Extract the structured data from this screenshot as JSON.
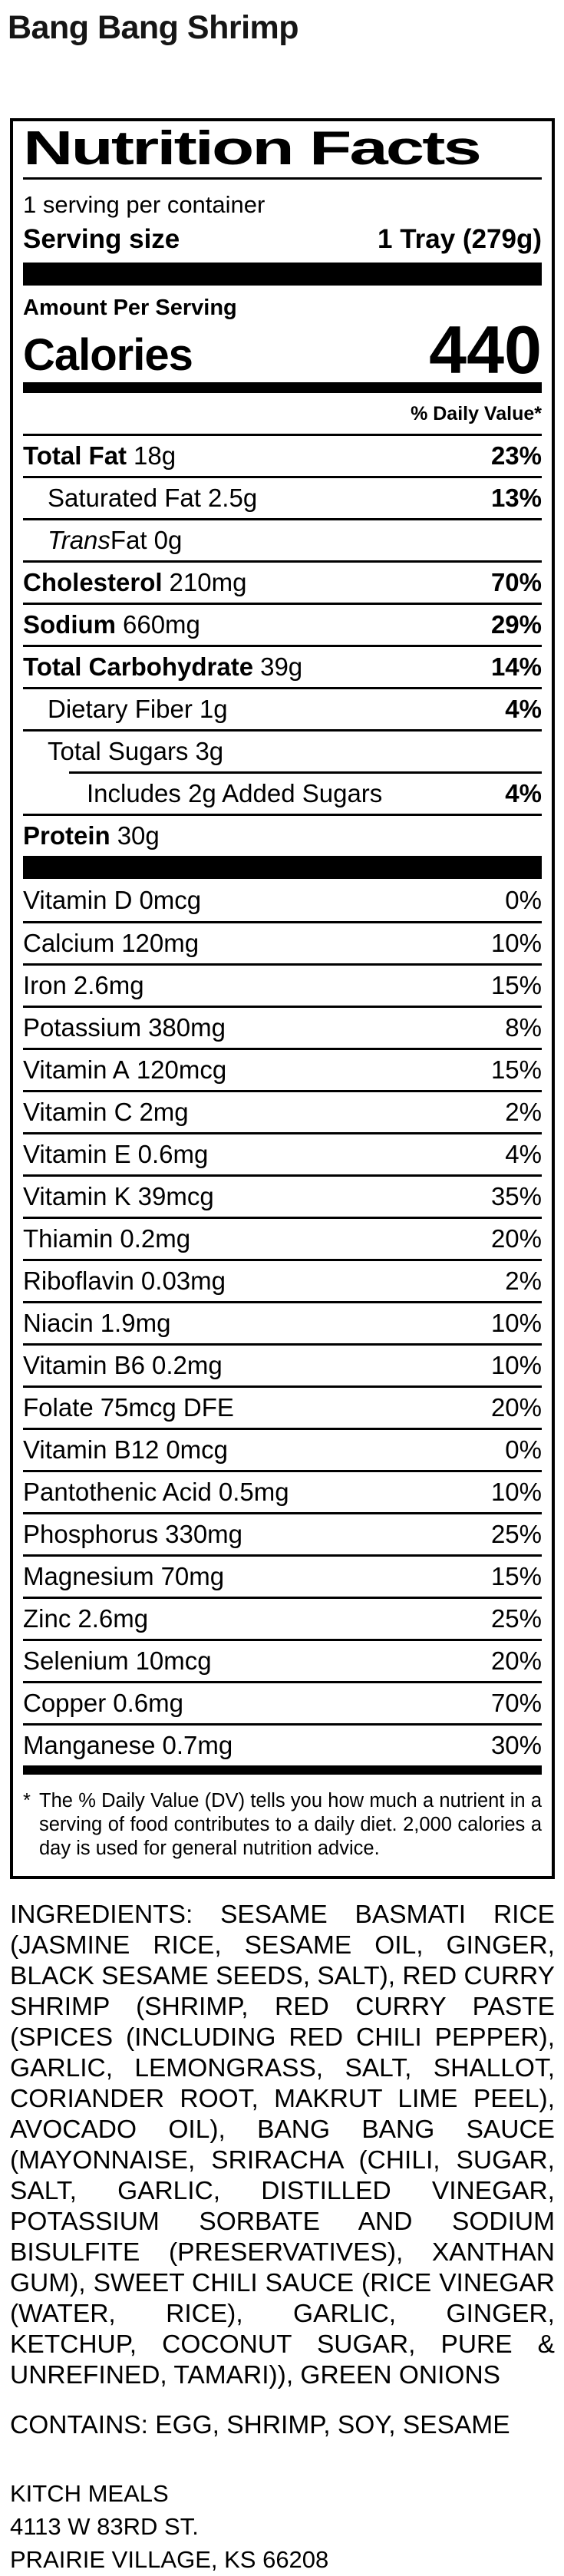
{
  "page_title": "Bang Bang Shrimp",
  "label": {
    "title": "Nutrition Facts",
    "servings_per_container": "1 serving per container",
    "serving_size_label": "Serving size",
    "serving_size_value": "1 Tray (279g)",
    "amount_per_serving": "Amount Per Serving",
    "calories_label": "Calories",
    "calories_value": "440",
    "daily_value_header": "% Daily Value*",
    "macros": [
      {
        "name": "Total Fat",
        "amount": "18g",
        "dv": "23%",
        "bold": true,
        "indent": 0
      },
      {
        "name": "Saturated Fat",
        "amount": "2.5g",
        "dv": "13%",
        "bold": false,
        "indent": 1
      },
      {
        "italic_prefix": "Trans",
        "name": "Fat",
        "amount": "0g",
        "dv": "",
        "bold": false,
        "indent": 1
      },
      {
        "name": "Cholesterol",
        "amount": "210mg",
        "dv": "70%",
        "bold": true,
        "indent": 0
      },
      {
        "name": "Sodium",
        "amount": "660mg",
        "dv": "29%",
        "bold": true,
        "indent": 0
      },
      {
        "name": "Total Carbohydrate",
        "amount": "39g",
        "dv": "14%",
        "bold": true,
        "indent": 0
      },
      {
        "name": "Dietary Fiber",
        "amount": "1g",
        "dv": "4%",
        "bold": false,
        "indent": 1
      },
      {
        "name": "Total Sugars",
        "amount": "3g",
        "dv": "",
        "bold": false,
        "indent": 1
      },
      {
        "name": "Includes 2g Added Sugars",
        "amount": "",
        "dv": "4%",
        "bold": false,
        "indent": 2,
        "partial_rule": true
      },
      {
        "name": "Protein",
        "amount": "30g",
        "dv": "",
        "bold": true,
        "indent": 0
      }
    ],
    "vitamins": [
      {
        "name": "Vitamin D",
        "amount": "0mcg",
        "dv": "0%"
      },
      {
        "name": "Calcium",
        "amount": "120mg",
        "dv": "10%"
      },
      {
        "name": "Iron",
        "amount": "2.6mg",
        "dv": "15%"
      },
      {
        "name": "Potassium",
        "amount": "380mg",
        "dv": "8%"
      },
      {
        "name": "Vitamin A",
        "amount": "120mcg",
        "dv": "15%"
      },
      {
        "name": "Vitamin C",
        "amount": "2mg",
        "dv": "2%"
      },
      {
        "name": "Vitamin E",
        "amount": "0.6mg",
        "dv": "4%"
      },
      {
        "name": "Vitamin K",
        "amount": "39mcg",
        "dv": "35%"
      },
      {
        "name": "Thiamin",
        "amount": "0.2mg",
        "dv": "20%"
      },
      {
        "name": "Riboflavin",
        "amount": "0.03mg",
        "dv": "2%"
      },
      {
        "name": "Niacin",
        "amount": "1.9mg",
        "dv": "10%"
      },
      {
        "name": "Vitamin B6",
        "amount": "0.2mg",
        "dv": "10%"
      },
      {
        "name": "Folate",
        "amount": "75mcg DFE",
        "dv": "20%"
      },
      {
        "name": "Vitamin B12",
        "amount": "0mcg",
        "dv": "0%"
      },
      {
        "name": "Pantothenic Acid",
        "amount": "0.5mg",
        "dv": "10%"
      },
      {
        "name": "Phosphorus",
        "amount": "330mg",
        "dv": "25%"
      },
      {
        "name": "Magnesium",
        "amount": "70mg",
        "dv": "15%"
      },
      {
        "name": "Zinc",
        "amount": "2.6mg",
        "dv": "25%"
      },
      {
        "name": "Selenium",
        "amount": "10mcg",
        "dv": "20%"
      },
      {
        "name": "Copper",
        "amount": "0.6mg",
        "dv": "70%"
      },
      {
        "name": "Manganese",
        "amount": "0.7mg",
        "dv": "30%"
      }
    ],
    "footnote_marker": "*",
    "footnote": "The % Daily Value (DV) tells you how much a nutrient in a serving of food contributes to a daily diet. 2,000 calories a day is used for general nutrition advice."
  },
  "ingredients": "INGREDIENTS: SESAME BASMATI RICE (JASMINE RICE, SESAME OIL, GINGER, BLACK SESAME SEEDS, SALT), RED CURRY SHRIMP (SHRIMP, RED CURRY PASTE (SPICES (INCLUDING RED CHILI PEPPER), GARLIC, LEMONGRASS, SALT, SHALLOT, CORIANDER ROOT, MAKRUT LIME PEEL), AVOCADO OIL), BANG BANG SAUCE (MAYONNAISE, SRIRACHA (CHILI, SUGAR, SALT, GARLIC, DISTILLED VINEGAR, POTASSIUM SORBATE AND SODIUM BISULFITE (PRESERVATIVES), XANTHAN GUM), SWEET CHILI SAUCE (RICE VINEGAR (WATER, RICE), GARLIC, GINGER, KETCHUP, COCONUT SUGAR, PURE & UNREFINED, TAMARI)), GREEN ONIONS",
  "contains": "CONTAINS: EGG, SHRIMP, SOY, SESAME",
  "address_lines": [
    "KITCH MEALS",
    "4113 W 83RD ST.",
    "PRAIRIE VILLAGE, KS 66208"
  ]
}
